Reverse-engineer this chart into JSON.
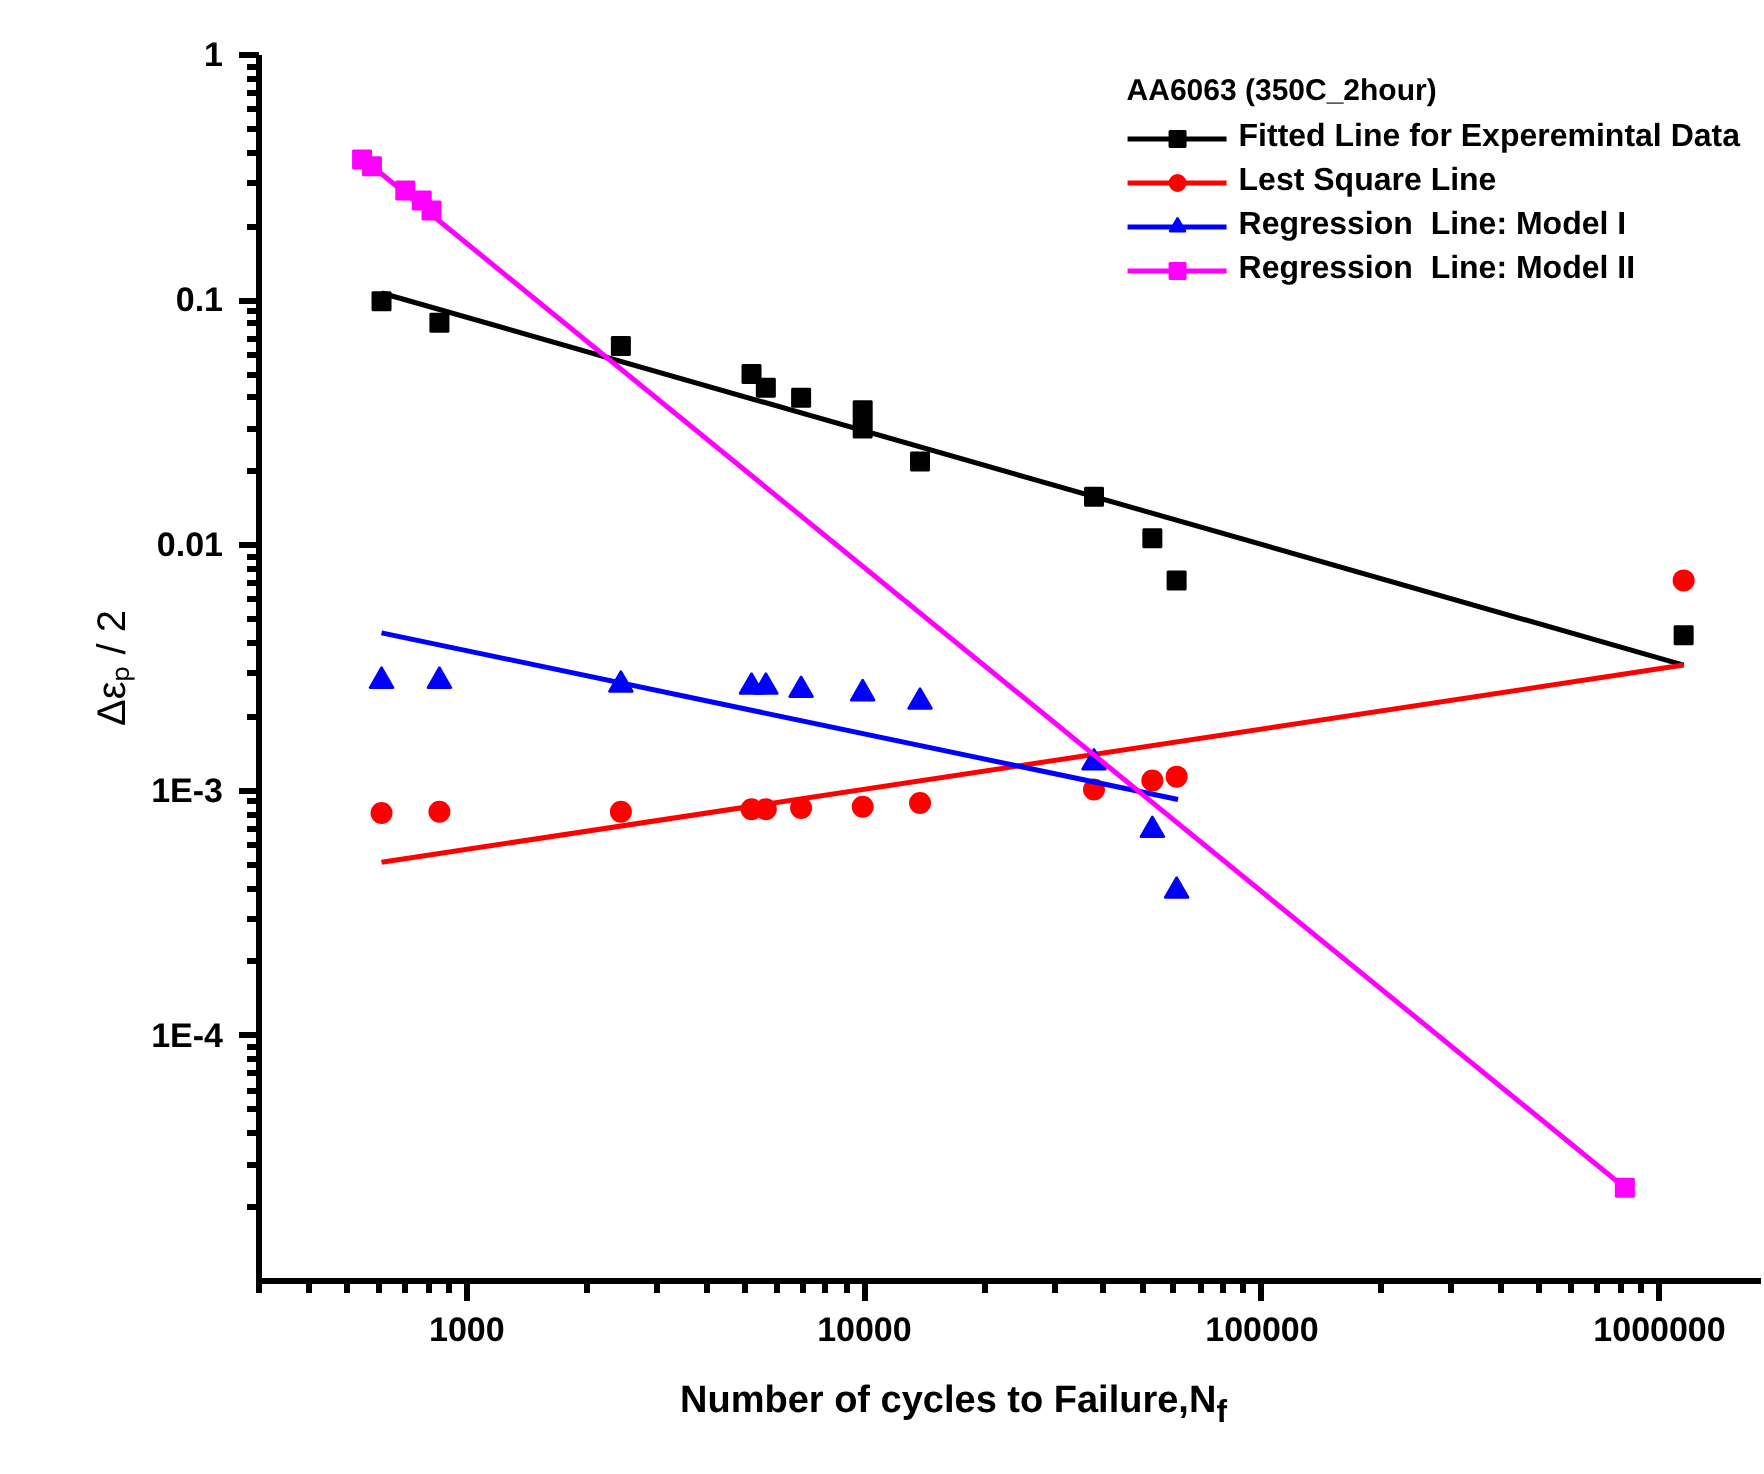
{
  "chart_data": {
    "type": "scatter",
    "legend_title": "AA6063 (350C_2hour)",
    "xlabel": "Number of cycles  to Failure,N$_{f}$",
    "ylabel": "Δεₚ / 2",
    "log": "xy",
    "grid": false,
    "legend": "top right",
    "xlim": [
      300,
      1800000
    ],
    "ylim": [
      1e-05,
      1
    ],
    "xticks": [
      1000,
      10000,
      100000,
      1000000
    ],
    "yticks": [
      {
        "value": 0.0001,
        "label": "1E-4"
      },
      {
        "value": 0.001,
        "label": "1E-3"
      },
      0.01,
      0.1,
      1
    ],
    "series": [
      {
        "marker": "square",
        "color": "#000000",
        "x": [
          610,
          853,
          2440,
          5200,
          5650,
          6930,
          9900,
          9900,
          13800,
          37800,
          53000,
          61000,
          1150000
        ],
        "values": [
          0.099,
          0.081,
          0.065,
          0.05,
          0.044,
          0.04,
          0.0356,
          0.03,
          0.022,
          0.0158,
          0.0107,
          0.0072,
          0.0043
        ]
      },
      {
        "type": "line",
        "name": "Fitted Line for Experemintal Data",
        "color": "#000000",
        "x": [
          610,
          1150000
        ],
        "values": [
          0.107,
          0.00325
        ]
      },
      {
        "marker": "circle",
        "color": "#ff0000",
        "x": [
          610,
          853,
          2440,
          5200,
          5650,
          6930,
          9900,
          13800,
          37800,
          53000,
          61000,
          1150000
        ],
        "values": [
          0.00081,
          0.00082,
          0.00082,
          0.00084,
          0.00084,
          0.00085,
          0.00086,
          0.00089,
          0.00101,
          0.0011,
          0.00114,
          0.0072
        ]
      },
      {
        "type": "line",
        "name": "Lest Square Line",
        "color": "#ff0000",
        "x": [
          610,
          1150000
        ],
        "values": [
          0.00051,
          0.00325
        ]
      },
      {
        "marker": "triangle",
        "color": "#0000ff",
        "x": [
          610,
          853,
          2440,
          5200,
          5650,
          6930,
          9900,
          13800,
          37800,
          53000,
          61000
        ],
        "values": [
          0.0028,
          0.0028,
          0.0027,
          0.00265,
          0.00265,
          0.00257,
          0.00249,
          0.0023,
          0.0013,
          0.00069,
          0.00039
        ]
      },
      {
        "type": "line",
        "name": "Regression  Line: Model I",
        "color": "#0000ff",
        "x": [
          610,
          61500
        ],
        "values": [
          0.0044,
          0.00092
        ]
      },
      {
        "marker": "square",
        "color": "#ff00ff",
        "x": [
          545,
          577,
          700,
          770,
          815,
          818000
        ],
        "values": [
          0.375,
          0.352,
          0.28,
          0.255,
          0.232,
          2.4e-05
        ]
      },
      {
        "type": "line",
        "name": "Regression  Line: Model II",
        "color": "#ff00ff",
        "x": [
          545,
          818000
        ],
        "values": [
          0.38,
          2.4e-05
        ]
      }
    ]
  }
}
